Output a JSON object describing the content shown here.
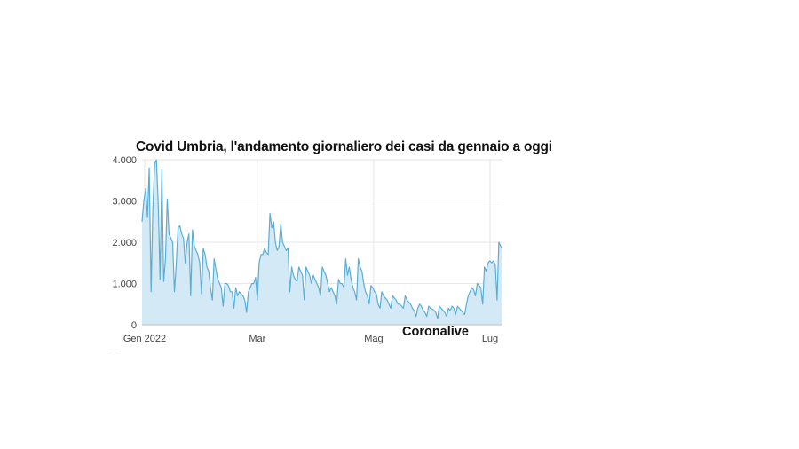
{
  "chart_data": {
    "type": "area",
    "title": "Covid Umbria, l'andamento giornaliero dei casi da gennaio a oggi",
    "watermark": "Coronalive",
    "xlabel": "",
    "ylabel": "",
    "x_tick_labels": [
      "Gen 2022",
      "Mar",
      "Mag",
      "Lug"
    ],
    "y_tick_labels": [
      "0",
      "1.000",
      "2.000",
      "3.000",
      "4.000"
    ],
    "y_ticks": [
      0,
      1000,
      2000,
      3000,
      4000
    ],
    "ylim": [
      0,
      4000
    ],
    "x_range_days": [
      1,
      190
    ],
    "grid": true,
    "legend": "none",
    "colors": {
      "line": "#5aaed6",
      "fill": "#d3e9f5",
      "grid": "#e6e6e6"
    },
    "series": [
      {
        "values": [
          2500,
          3000,
          3300,
          2600,
          3800,
          800,
          2800,
          3900,
          4000,
          2900,
          1100,
          3750,
          1050,
          1600,
          3050,
          2200,
          2100,
          2000,
          800,
          1500,
          2350,
          2400,
          2200,
          2100,
          1500,
          2000,
          2200,
          700,
          2300,
          1900,
          1800,
          1700,
          1500,
          750,
          1850,
          1700,
          1400,
          1300,
          900,
          600,
          1600,
          1350,
          1100,
          1000,
          900,
          450,
          1000,
          1000,
          950,
          800,
          800,
          400,
          900,
          700,
          800,
          750,
          700,
          600,
          300,
          800,
          900,
          1000,
          1000,
          1150,
          600,
          1500,
          1700,
          1700,
          1850,
          1750,
          1700,
          2700,
          2350,
          2500,
          2000,
          1800,
          1900,
          2450,
          2000,
          1900,
          1800,
          1850,
          800,
          1400,
          1200,
          1100,
          1050,
          1400,
          1300,
          1200,
          600,
          1400,
          1300,
          1200,
          1000,
          1200,
          1100,
          1000,
          900,
          700,
          1400,
          1300,
          1200,
          1000,
          800,
          900,
          800,
          700,
          500,
          1100,
          1000,
          1000,
          900,
          1600,
          1200,
          1400,
          1100,
          900,
          800,
          600,
          1600,
          1400,
          1300,
          1000,
          800,
          700,
          500,
          950,
          900,
          800,
          750,
          500,
          400,
          800,
          700,
          650,
          600,
          500,
          400,
          700,
          650,
          600,
          500,
          500,
          450,
          400,
          700,
          600,
          550,
          500,
          400,
          350,
          200,
          400,
          500,
          450,
          350,
          300,
          200,
          450,
          400,
          380,
          350,
          300,
          150,
          450,
          400,
          350,
          300,
          200,
          400,
          350,
          450,
          400,
          250,
          450,
          400,
          350,
          300,
          250,
          500,
          700,
          800,
          900,
          850,
          700,
          1000,
          950,
          900,
          500,
          1400,
          1300,
          1500,
          1550,
          1500,
          1550,
          1450,
          600,
          2000,
          1900,
          1850
        ]
      }
    ]
  }
}
